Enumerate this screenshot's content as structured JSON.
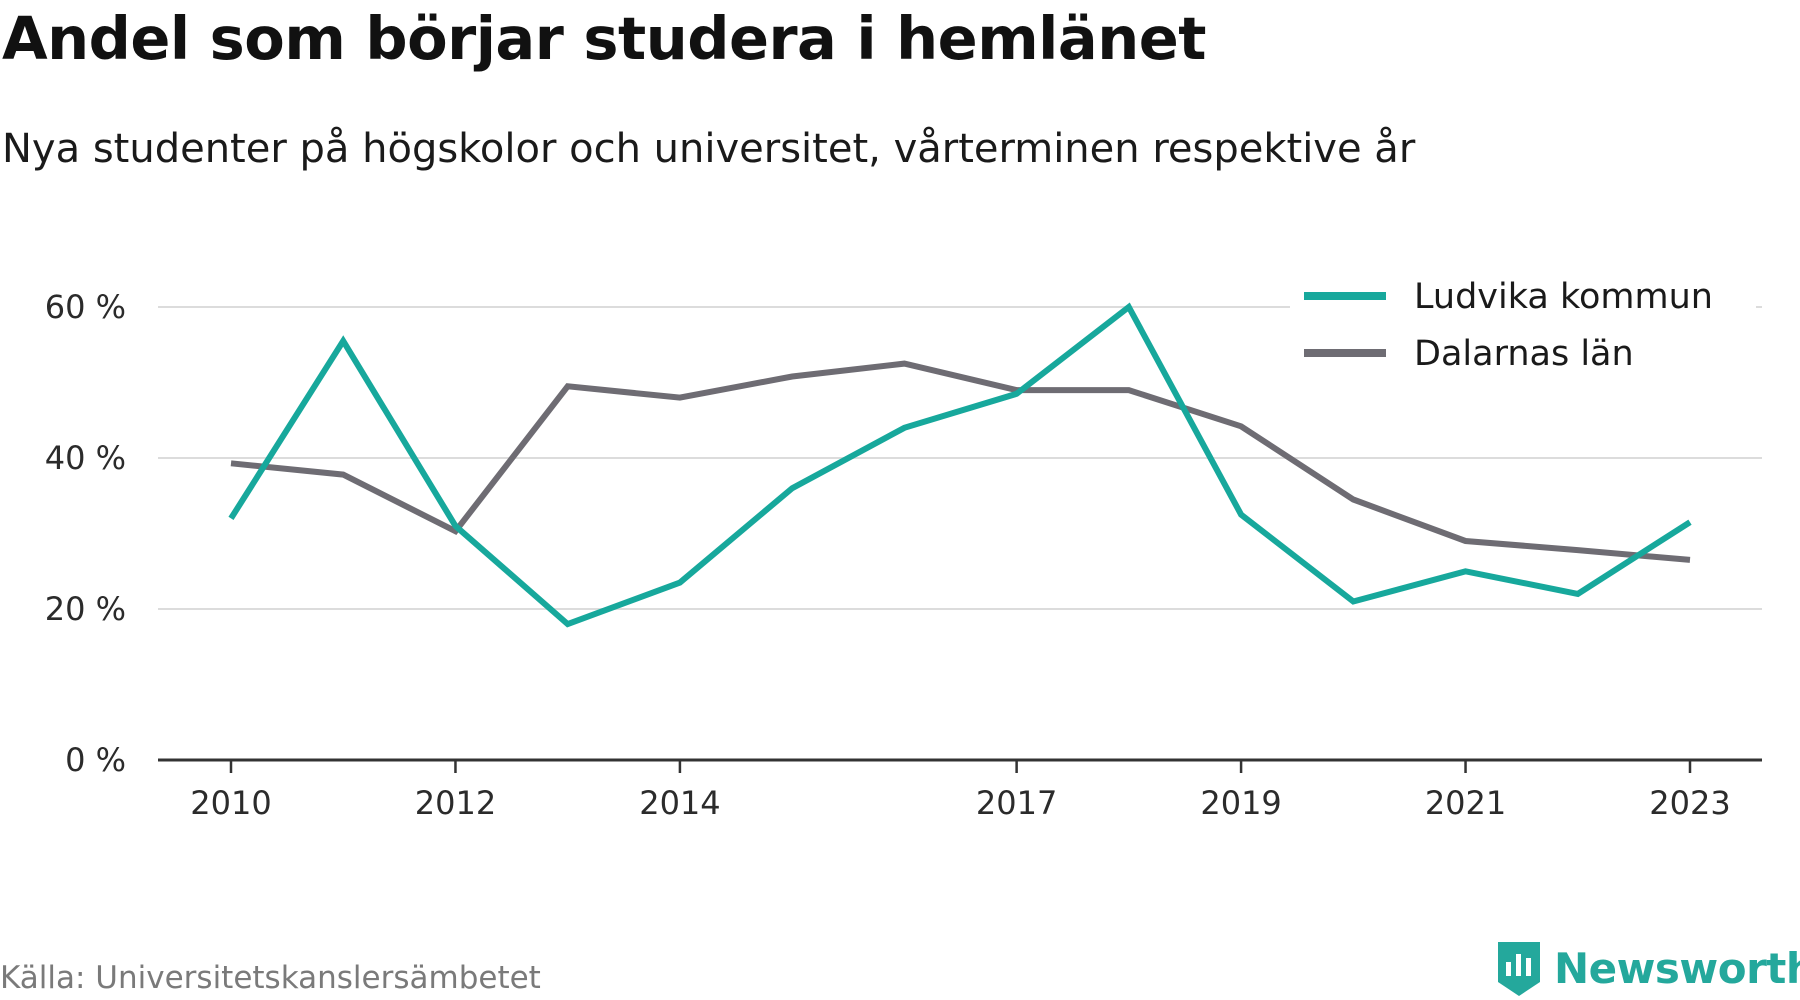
{
  "title": "Andel som börjar studera i hemlänet",
  "subtitle": "Nya studenter på högskolor och universitet, vårterminen respektive år",
  "source": "Källa: Universitetskanslersämbetet",
  "brand": {
    "name": "Newsworthy",
    "color": "#24a89c"
  },
  "chart_data": {
    "type": "line",
    "x": [
      2010,
      2011,
      2012,
      2013,
      2014,
      2015,
      2016,
      2017,
      2018,
      2019,
      2020,
      2021,
      2022,
      2023
    ],
    "x_ticks": [
      2010,
      2012,
      2014,
      2017,
      2019,
      2021,
      2023
    ],
    "y_ticks": [
      0,
      20,
      40,
      60
    ],
    "y_tick_labels": [
      "0 %",
      "20 %",
      "40 %",
      "60 %"
    ],
    "ylim": [
      0,
      60
    ],
    "grid": true,
    "legend_position": "top-right",
    "series": [
      {
        "name": "Ludvika kommun",
        "color": "#17a89c",
        "values": [
          32,
          55.5,
          31,
          18,
          23.5,
          36,
          44,
          48.5,
          60,
          32.5,
          21,
          25,
          22,
          31.5
        ]
      },
      {
        "name": "Dalarnas län",
        "color": "#6e6c73",
        "values": [
          39.3,
          37.8,
          30.3,
          49.5,
          48,
          50.8,
          52.5,
          49,
          49,
          44.2,
          34.5,
          29,
          27.8,
          26.5
        ]
      }
    ]
  }
}
